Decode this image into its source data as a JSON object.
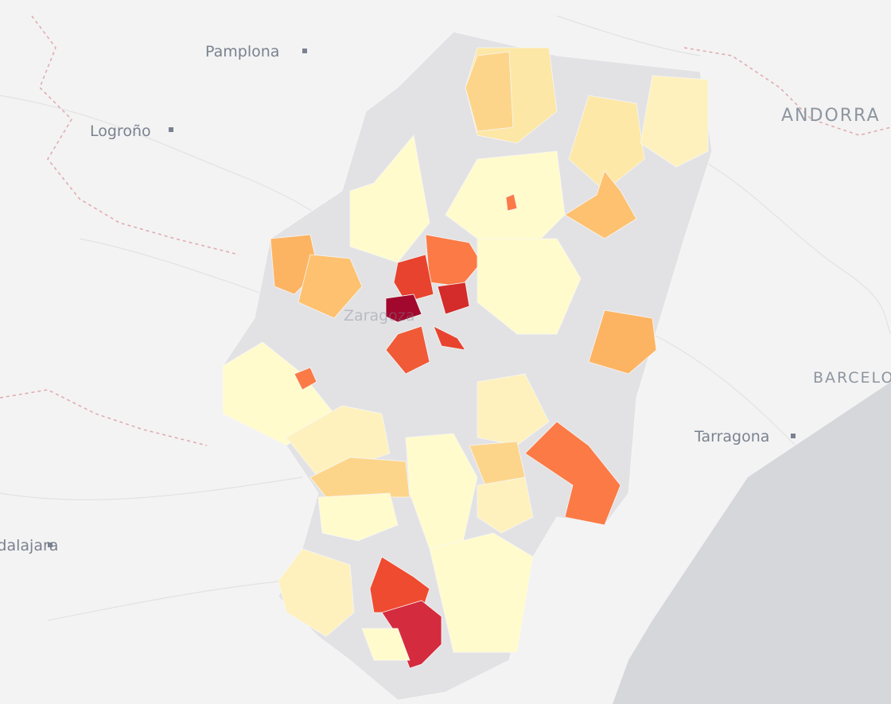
{
  "labels": {
    "pamplona": "Pamplona",
    "logrono": "Logroño",
    "andorra": "ANDORRA",
    "zaragoza": "Zaragoza",
    "barcelona": "BARCELONA",
    "tarragona": "Tarragona",
    "guadalajara": "Guadalajara"
  }
}
